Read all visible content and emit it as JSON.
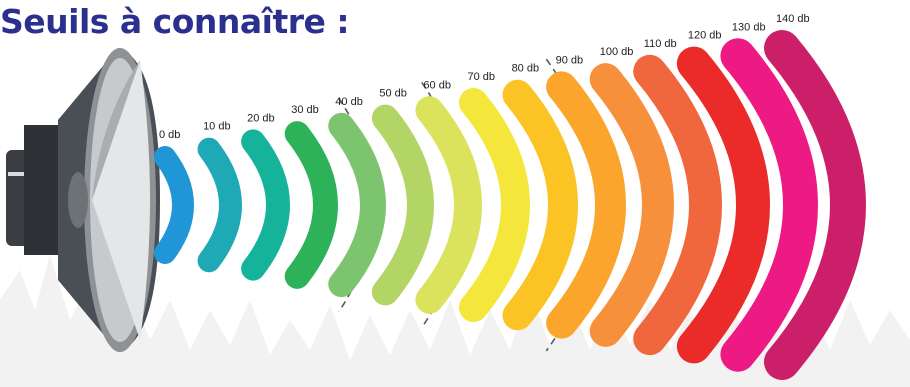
{
  "title": "Seuils à connaître :",
  "levels": [
    {
      "label": "0 db",
      "color": "#2196d6"
    },
    {
      "label": "10 db",
      "color": "#1fa8b6"
    },
    {
      "label": "20 db",
      "color": "#14b39a"
    },
    {
      "label": "30 db",
      "color": "#2db25a"
    },
    {
      "label": "40 db",
      "color": "#7cc46e"
    },
    {
      "label": "50 db",
      "color": "#b3d565"
    },
    {
      "label": "60 db",
      "color": "#dbe25c"
    },
    {
      "label": "70 db",
      "color": "#f4e63a"
    },
    {
      "label": "80 db",
      "color": "#fcc324"
    },
    {
      "label": "90 db",
      "color": "#fba52d"
    },
    {
      "label": "100 db",
      "color": "#f6903a"
    },
    {
      "label": "110 db",
      "color": "#f0663d"
    },
    {
      "label": "120 db",
      "color": "#ea2b2a"
    },
    {
      "label": "130 db",
      "color": "#ee1a84"
    },
    {
      "label": "140 db",
      "color": "#cc1f6a"
    }
  ]
}
